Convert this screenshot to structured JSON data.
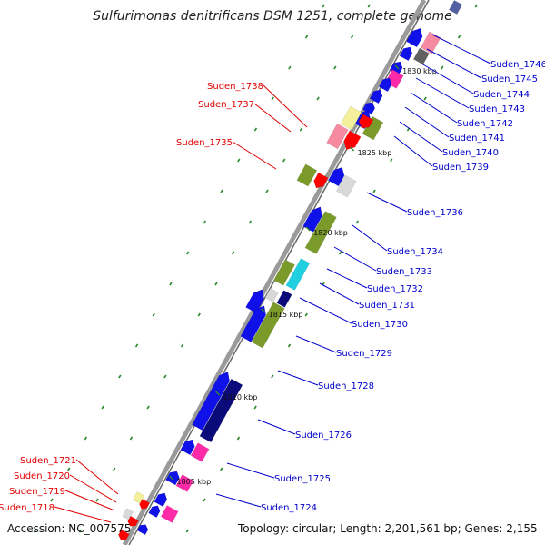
{
  "title": "Sulfurimonas denitrificans DSM 1251, complete genome",
  "accession": "Accession: NC_007575",
  "topology": "Topology: circular; Length: 2,201,561 bp; Genes: 2,155",
  "colors": {
    "left_label": "#e00000",
    "right_label": "#0000cc",
    "backbone": "#9a9a9a",
    "tick": "#2a8a2a"
  },
  "kbp_labels": [
    "1830 kbp",
    "1825 kbp",
    "1820 kbp",
    "1815 kbp",
    "1810 kbp",
    "1805 kbp"
  ],
  "right_labels": [
    "Suden_1746",
    "Suden_1745",
    "Suden_1744",
    "Suden_1743",
    "Suden_1742",
    "Suden_1741",
    "Suden_1740",
    "Suden_1739",
    "Suden_1736",
    "Suden_1734",
    "Suden_1733",
    "Suden_1732",
    "Suden_1731",
    "Suden_1730",
    "Suden_1729",
    "Suden_1728",
    "Suden_1726",
    "Suden_1725",
    "Suden_1724"
  ],
  "left_labels": [
    "Suden_1738",
    "Suden_1737",
    "Suden_1735",
    "Suden_1721",
    "Suden_1720",
    "Suden_1719",
    "Suden_1718"
  ]
}
